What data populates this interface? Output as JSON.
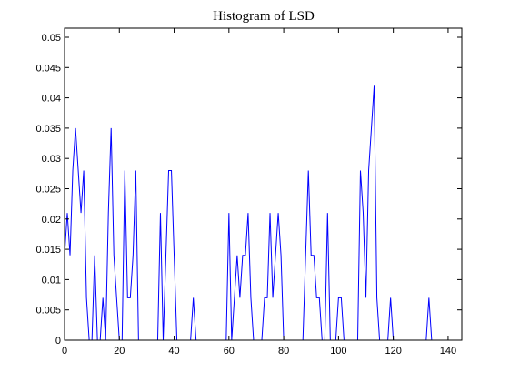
{
  "chart_data": {
    "type": "line",
    "title": "Histogram of LSD",
    "xlabel": "",
    "ylabel": "",
    "xlim": [
      0,
      145
    ],
    "ylim": [
      0,
      0.0515
    ],
    "x_ticks": [
      0,
      20,
      40,
      60,
      80,
      100,
      120,
      140
    ],
    "y_ticks": [
      0,
      0.005,
      0.01,
      0.015,
      0.02,
      0.025,
      0.03,
      0.035,
      0.04,
      0.045,
      0.05
    ],
    "x_tick_labels": [
      "0",
      "20",
      "40",
      "60",
      "80",
      "100",
      "120",
      "140"
    ],
    "y_tick_labels": [
      "0",
      "0.005",
      "0.01",
      "0.015",
      "0.02",
      "0.025",
      "0.03",
      "0.035",
      "0.04",
      "0.045",
      "0.05"
    ],
    "grid": false,
    "legend": "none",
    "line_color": "#0000ff",
    "series": [
      {
        "x": [
          0,
          1,
          2,
          3,
          4,
          5,
          6,
          7,
          8,
          9,
          10,
          11,
          12,
          13,
          14,
          15,
          16,
          17,
          18,
          19,
          20,
          21,
          22,
          23,
          24,
          25,
          26,
          27,
          28,
          29,
          30,
          31,
          32,
          33,
          34,
          35,
          36,
          37,
          38,
          39,
          40,
          41,
          42,
          43,
          44,
          45,
          46,
          47,
          48,
          49,
          50,
          51,
          52,
          53,
          54,
          55,
          56,
          57,
          58,
          59,
          60,
          61,
          62,
          63,
          64,
          65,
          66,
          67,
          68,
          69,
          70,
          71,
          72,
          73,
          74,
          75,
          76,
          77,
          78,
          79,
          80,
          81,
          82,
          83,
          84,
          85,
          86,
          87,
          88,
          89,
          90,
          91,
          92,
          93,
          94,
          95,
          96,
          97,
          98,
          99,
          100,
          101,
          102,
          103,
          104,
          105,
          106,
          107,
          108,
          109,
          110,
          111,
          112,
          113,
          114,
          115,
          116,
          117,
          118,
          119,
          120,
          121,
          122,
          123,
          124,
          125,
          126,
          127,
          128,
          129,
          130,
          131,
          132,
          133,
          134,
          135,
          136
        ],
        "y": [
          0.014,
          0.021,
          0.014,
          0.028,
          0.035,
          0.028,
          0.021,
          0.028,
          0.007,
          0,
          0,
          0.014,
          0,
          0,
          0.007,
          0,
          0.021,
          0.035,
          0.014,
          0.007,
          0,
          0,
          0.028,
          0.007,
          0.007,
          0.014,
          0.028,
          0,
          0,
          0,
          0,
          0,
          0,
          0,
          0,
          0.021,
          0,
          0.014,
          0.028,
          0.028,
          0.014,
          0,
          0,
          0,
          0,
          0,
          0,
          0.007,
          0,
          0,
          0,
          0,
          0,
          0,
          0,
          0,
          0,
          0,
          0,
          0,
          0.021,
          0,
          0.007,
          0.014,
          0.007,
          0.014,
          0.014,
          0.021,
          0.007,
          0,
          0,
          0,
          0,
          0.007,
          0.007,
          0.021,
          0.007,
          0.014,
          0.021,
          0.014,
          0,
          0,
          0,
          0,
          0,
          0,
          0,
          0,
          0.014,
          0.028,
          0.014,
          0.014,
          0.007,
          0.007,
          0,
          0,
          0.021,
          0,
          0,
          0,
          0.007,
          0.007,
          0,
          0,
          0,
          0,
          0,
          0,
          0.028,
          0.021,
          0.007,
          0.028,
          0.035,
          0.042,
          0.007,
          0,
          0,
          0,
          0,
          0.007,
          0,
          0,
          0,
          0,
          0,
          0,
          0,
          0,
          0,
          0,
          0,
          0,
          0,
          0.007,
          0,
          0,
          0
        ]
      }
    ]
  }
}
